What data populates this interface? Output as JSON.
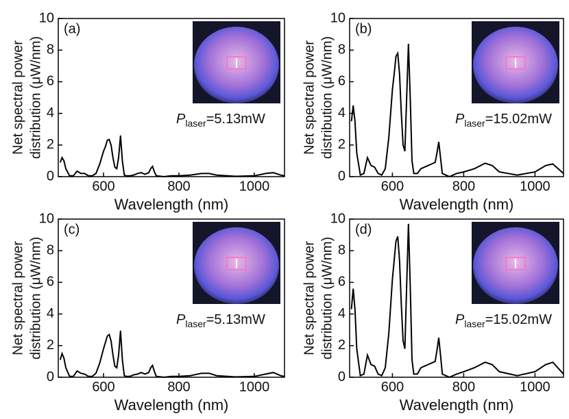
{
  "chart_data": [
    {
      "type": "line",
      "panel_label": "(a)",
      "ylabel": [
        "Net spectral power",
        "distribution (μW/nm)"
      ],
      "xlabel": "Wavelength (nm)",
      "annotation": {
        "symbol": "P",
        "subscript": "laser",
        "text": "=5.13mW"
      },
      "color": "#000000",
      "xlim": [
        480,
        1080
      ],
      "xticks": [
        600,
        800,
        1000
      ],
      "ylim": [
        0,
        10
      ],
      "yticks": [
        0,
        2,
        4,
        6,
        8,
        10
      ],
      "x": [
        485,
        490,
        495,
        500,
        510,
        520,
        530,
        540,
        550,
        560,
        570,
        580,
        590,
        600,
        605,
        610,
        615,
        620,
        625,
        630,
        635,
        640,
        645,
        650,
        655,
        660,
        670,
        680,
        690,
        700,
        710,
        720,
        725,
        730,
        735,
        740,
        760,
        780,
        800,
        830,
        860,
        880,
        900,
        950,
        1000,
        1030,
        1050,
        1070,
        1080
      ],
      "values": [
        0.9,
        1.2,
        1.0,
        0.5,
        0.05,
        0.05,
        0.35,
        0.2,
        0.2,
        0.05,
        0.05,
        0.2,
        0.8,
        1.6,
        1.9,
        2.3,
        2.35,
        2.0,
        1.2,
        0.6,
        0.5,
        1.2,
        2.6,
        1.0,
        0.1,
        0.05,
        0.05,
        0.1,
        0.2,
        0.25,
        0.15,
        0.25,
        0.5,
        0.65,
        0.3,
        0.05,
        0,
        0.05,
        0.05,
        0.1,
        0.2,
        0.2,
        0.1,
        0.02,
        0.05,
        0.2,
        0.25,
        0.1,
        0.05
      ]
    },
    {
      "type": "line",
      "panel_label": "(b)",
      "ylabel": [
        "Net spectral power",
        "distribution (μW/nm)"
      ],
      "xlabel": "Wavelength (nm)",
      "annotation": {
        "symbol": "P",
        "subscript": "laser",
        "text": "=15.02mW"
      },
      "color": "#000000",
      "xlim": [
        480,
        1080
      ],
      "xticks": [
        600,
        800,
        1000
      ],
      "ylim": [
        0,
        10
      ],
      "yticks": [
        0,
        2,
        4,
        6,
        8,
        10
      ],
      "x": [
        485,
        490,
        495,
        500,
        510,
        520,
        530,
        540,
        550,
        560,
        570,
        580,
        590,
        600,
        605,
        610,
        615,
        620,
        625,
        630,
        635,
        640,
        645,
        650,
        655,
        660,
        670,
        680,
        690,
        700,
        710,
        720,
        725,
        730,
        735,
        740,
        760,
        780,
        800,
        830,
        860,
        880,
        900,
        950,
        1000,
        1030,
        1050,
        1070,
        1080
      ],
      "values": [
        3.5,
        4.5,
        3.5,
        1.5,
        0.1,
        0.2,
        1.2,
        0.7,
        0.6,
        0.2,
        0.1,
        0.5,
        2.5,
        5.5,
        6.5,
        7.6,
        7.8,
        6.5,
        4.0,
        2.0,
        1.6,
        5.0,
        8.4,
        5.0,
        1.0,
        0.2,
        0.2,
        0.5,
        0.6,
        0.7,
        0.8,
        0.9,
        1.5,
        2.2,
        1.2,
        0.2,
        0,
        0.2,
        0.3,
        0.5,
        0.85,
        0.7,
        0.3,
        0.1,
        0.3,
        0.7,
        0.8,
        0.4,
        0.2
      ]
    },
    {
      "type": "line",
      "panel_label": "(c)",
      "ylabel": [
        "Net spectral power",
        "distribution (μW/nm)"
      ],
      "xlabel": "Wavelength (nm)",
      "annotation": {
        "symbol": "P",
        "subscript": "laser",
        "text": "=5.13mW"
      },
      "color": "#000000",
      "xlim": [
        480,
        1080
      ],
      "xticks": [
        600,
        800,
        1000
      ],
      "ylim": [
        0,
        10
      ],
      "yticks": [
        0,
        2,
        4,
        6,
        8,
        10
      ],
      "x": [
        485,
        490,
        495,
        500,
        510,
        520,
        530,
        540,
        550,
        560,
        570,
        580,
        590,
        600,
        605,
        610,
        615,
        620,
        625,
        630,
        635,
        640,
        645,
        650,
        655,
        660,
        670,
        680,
        690,
        700,
        710,
        720,
        725,
        730,
        735,
        740,
        760,
        780,
        800,
        830,
        860,
        880,
        900,
        950,
        1000,
        1030,
        1050,
        1070,
        1080
      ],
      "values": [
        1.1,
        1.5,
        1.2,
        0.6,
        0.05,
        0.05,
        0.4,
        0.25,
        0.2,
        0.05,
        0.05,
        0.25,
        0.9,
        1.8,
        2.2,
        2.6,
        2.7,
        2.3,
        1.4,
        0.7,
        0.6,
        1.4,
        2.95,
        1.1,
        0.1,
        0.05,
        0.05,
        0.15,
        0.2,
        0.3,
        0.2,
        0.3,
        0.6,
        0.75,
        0.35,
        0.05,
        0,
        0.05,
        0.05,
        0.1,
        0.25,
        0.25,
        0.1,
        0.02,
        0.05,
        0.2,
        0.3,
        0.1,
        0.05
      ]
    },
    {
      "type": "line",
      "panel_label": "(d)",
      "ylabel": [
        "Net spectral power",
        "distribution (μW/nm)"
      ],
      "xlabel": "Wavelength (nm)",
      "annotation": {
        "symbol": "P",
        "subscript": "laser",
        "text": "=15.02mW"
      },
      "color": "#000000",
      "xlim": [
        480,
        1080
      ],
      "xticks": [
        600,
        800,
        1000
      ],
      "ylim": [
        0,
        10
      ],
      "yticks": [
        0,
        2,
        4,
        6,
        8,
        10
      ],
      "x": [
        485,
        490,
        495,
        500,
        510,
        520,
        530,
        540,
        550,
        560,
        570,
        580,
        590,
        600,
        605,
        610,
        615,
        620,
        625,
        630,
        635,
        640,
        645,
        650,
        655,
        660,
        670,
        680,
        690,
        700,
        710,
        720,
        725,
        730,
        735,
        740,
        760,
        780,
        800,
        830,
        860,
        880,
        900,
        950,
        1000,
        1030,
        1050,
        1070,
        1080
      ],
      "values": [
        4.3,
        5.6,
        4.3,
        1.8,
        0.1,
        0.2,
        1.4,
        0.8,
        0.7,
        0.2,
        0.1,
        0.6,
        2.8,
        6.2,
        7.4,
        8.6,
        8.9,
        7.4,
        4.6,
        2.3,
        1.8,
        5.8,
        9.7,
        5.8,
        1.1,
        0.2,
        0.2,
        0.6,
        0.7,
        0.8,
        0.9,
        1.0,
        1.7,
        2.5,
        1.4,
        0.2,
        0,
        0.2,
        0.35,
        0.6,
        0.95,
        0.8,
        0.35,
        0.1,
        0.35,
        0.8,
        0.95,
        0.45,
        0.2
      ]
    }
  ]
}
